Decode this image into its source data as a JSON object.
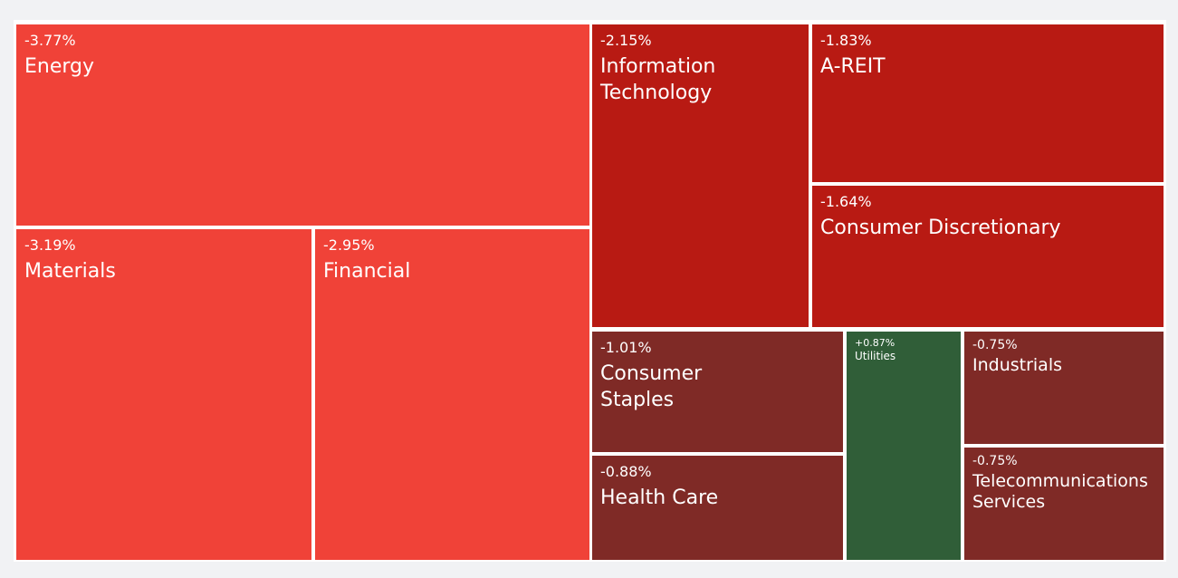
{
  "chart_data": {
    "type": "treemap",
    "sectors": [
      {
        "key": "energy",
        "name": "Energy",
        "change_label": "-3.77%",
        "change": -3.77,
        "color": "#f04238"
      },
      {
        "key": "materials",
        "name": "Materials",
        "change_label": "-3.19%",
        "change": -3.19,
        "color": "#f04238"
      },
      {
        "key": "financial",
        "name": "Financial",
        "change_label": "-2.95%",
        "change": -2.95,
        "color": "#f04238"
      },
      {
        "key": "information-technology",
        "name": "Information Technology",
        "change_label": "-2.15%",
        "change": -2.15,
        "color": "#b81a13"
      },
      {
        "key": "a-reit",
        "name": "A-REIT",
        "change_label": "-1.83%",
        "change": -1.83,
        "color": "#b81a13"
      },
      {
        "key": "consumer-discretionary",
        "name": "Consumer Discretionary",
        "change_label": "-1.64%",
        "change": -1.64,
        "color": "#b81a13"
      },
      {
        "key": "consumer-staples",
        "name": "Consumer Staples",
        "change_label": "-1.01%",
        "change": -1.01,
        "color": "#7f2a26"
      },
      {
        "key": "health-care",
        "name": "Health Care",
        "change_label": "-0.88%",
        "change": -0.88,
        "color": "#7f2a26"
      },
      {
        "key": "utilities",
        "name": "Utilities",
        "change_label": "+0.87%",
        "change": 0.87,
        "color": "#305e38"
      },
      {
        "key": "industrials",
        "name": "Industrials",
        "change_label": "-0.75%",
        "change": -0.75,
        "color": "#7f2a26"
      },
      {
        "key": "telecommunications-services",
        "name": "Telecommunications Services",
        "change_label": "-0.75%",
        "change": -0.75,
        "color": "#7f2a26"
      }
    ]
  }
}
